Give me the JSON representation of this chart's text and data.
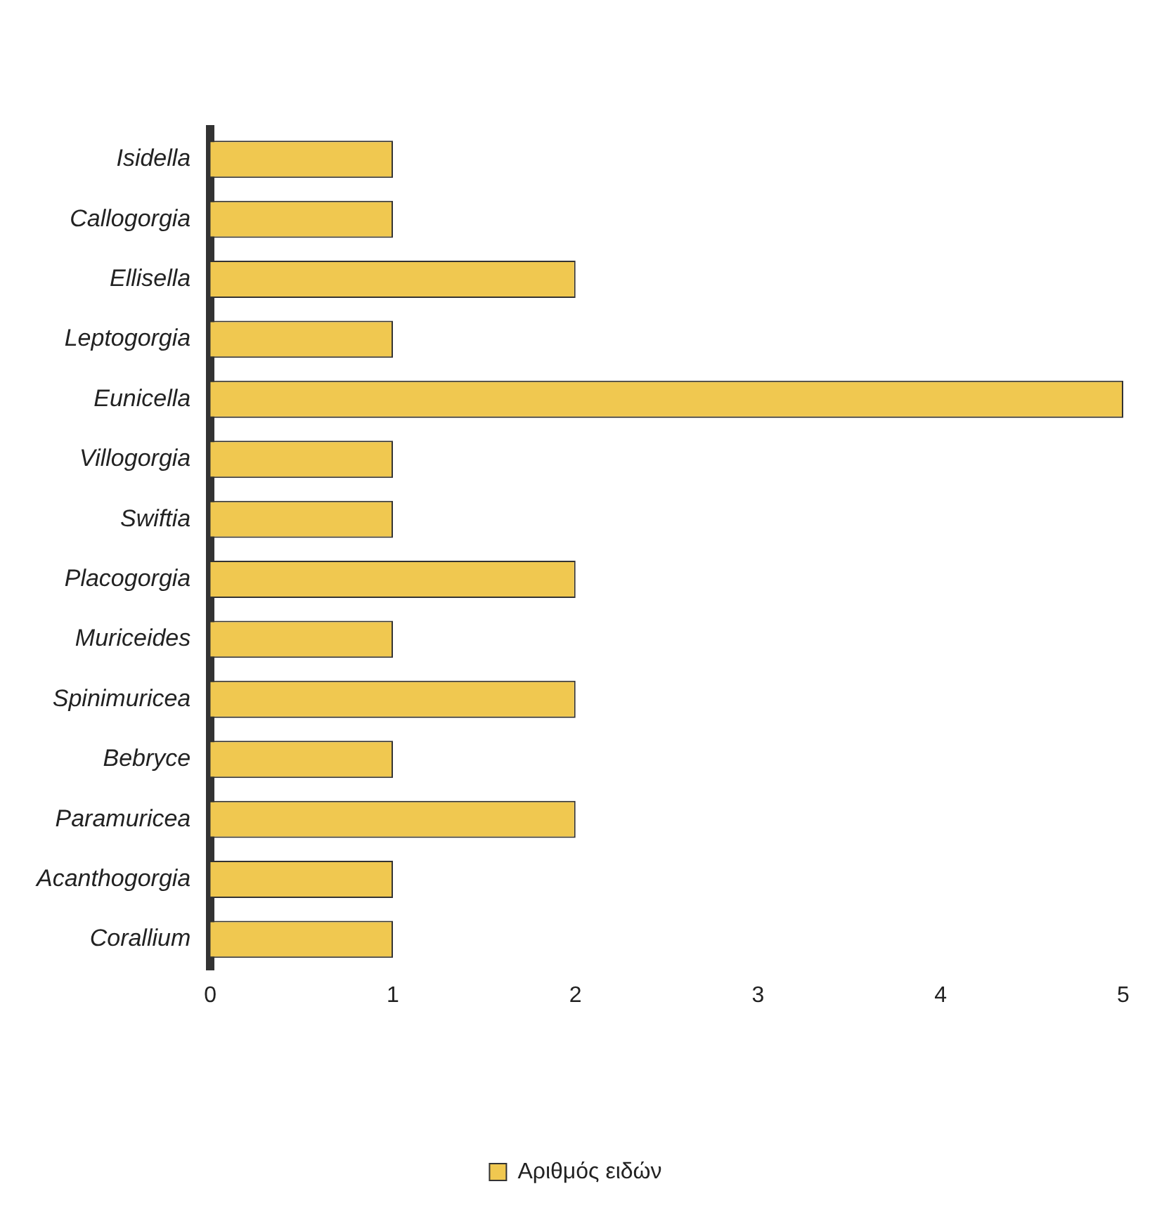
{
  "chart_data": {
    "type": "bar",
    "orientation": "horizontal",
    "categories": [
      "Isidella",
      "Callogorgia",
      "Ellisella",
      "Leptogorgia",
      "Eunicella",
      "Villogorgia",
      "Swiftia",
      "Placogorgia",
      "Muriceides",
      "Spinimuricea",
      "Bebryce",
      "Paramuricea",
      "Acanthogorgia",
      "Corallium"
    ],
    "series": [
      {
        "name": "Αριθμός ειδών",
        "color": "#f0c850",
        "values": [
          1,
          1,
          2,
          1,
          5,
          1,
          1,
          2,
          1,
          2,
          1,
          2,
          1,
          1
        ]
      }
    ],
    "xlim": [
      0,
      5
    ],
    "xticks": [
      0,
      1,
      2,
      3,
      4,
      5
    ],
    "grid": false,
    "legend": "bottom"
  }
}
